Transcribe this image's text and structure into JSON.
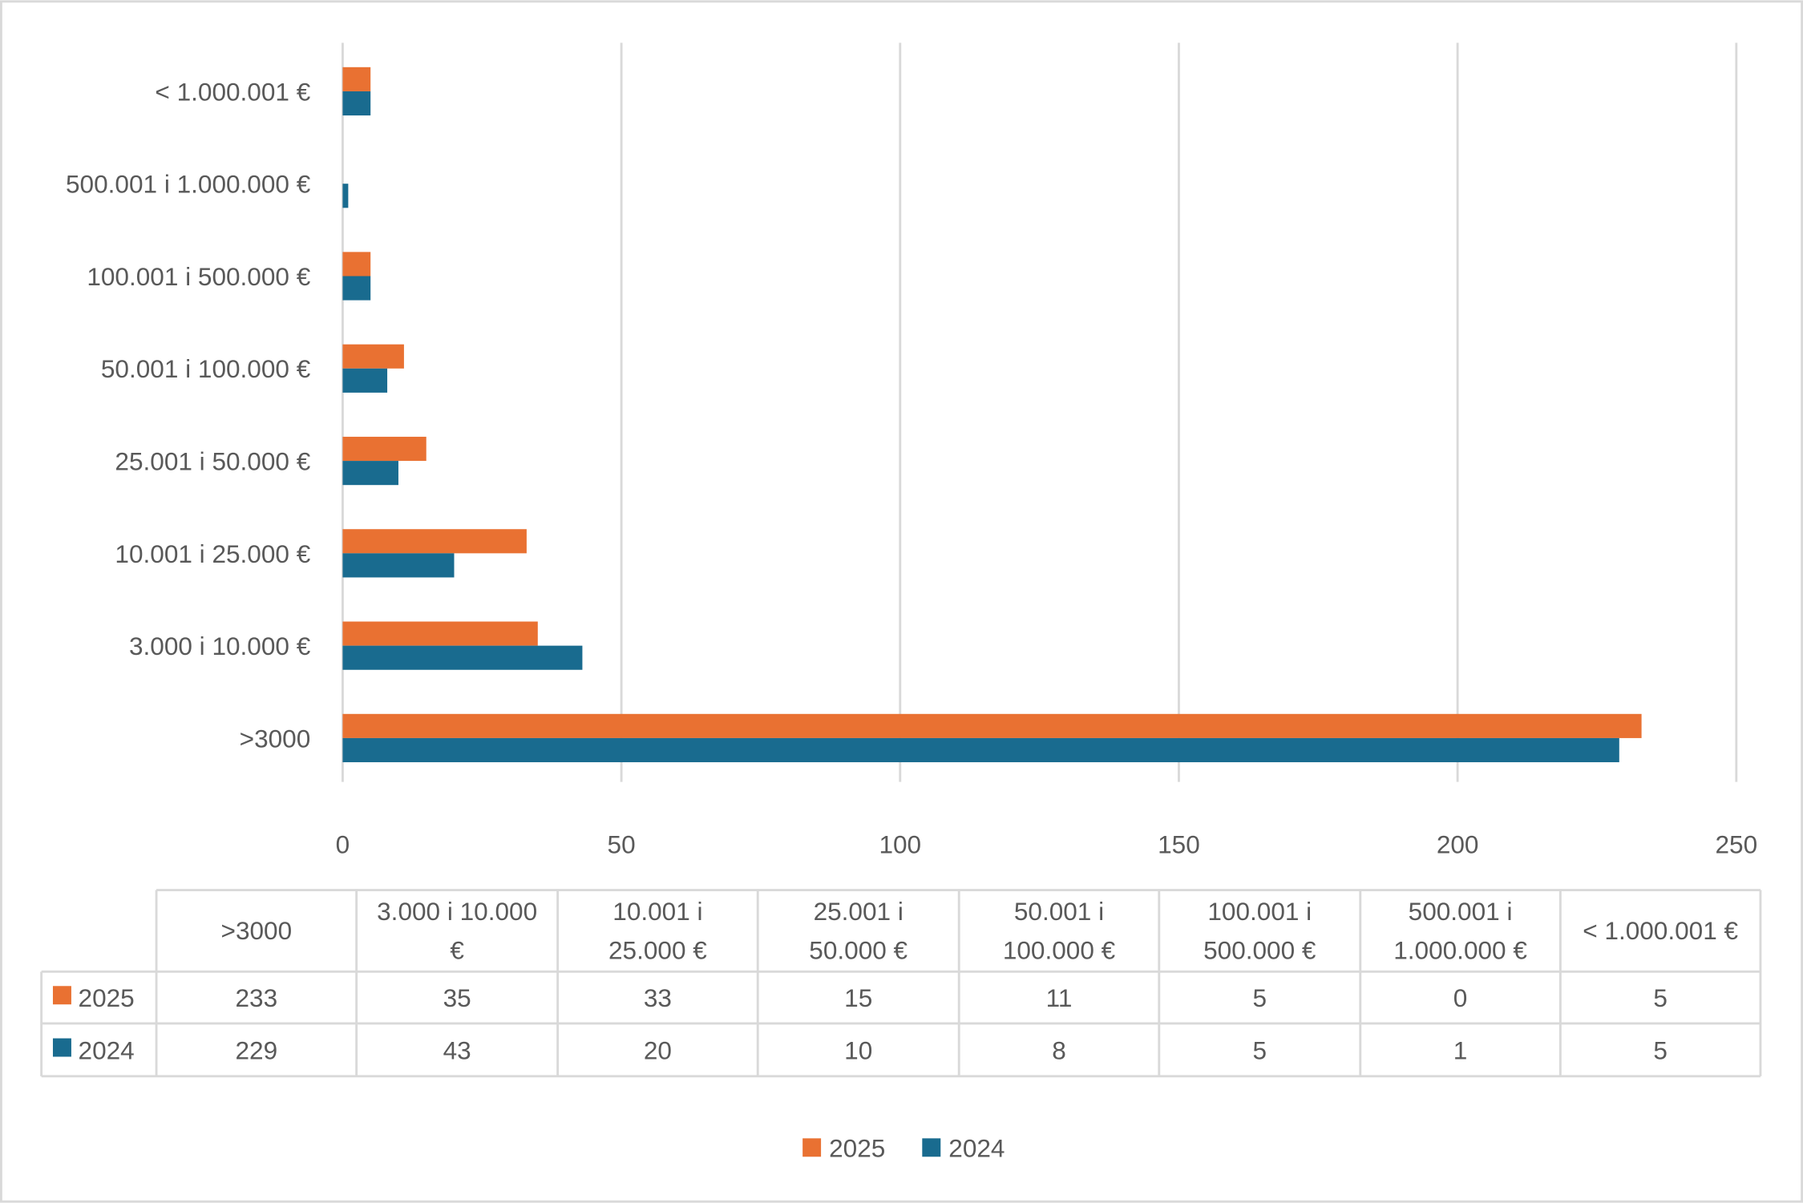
{
  "chart_data": {
    "type": "bar",
    "orientation": "horizontal",
    "categories": [
      ">3000",
      "3.000 i 10.000 €",
      "10.001 i 25.000 €",
      "25.001 i 50.000 €",
      "50.001 i 100.000 €",
      "100.001 i 500.000 €",
      "500.001 i 1.000.000 €",
      "< 1.000.001 €"
    ],
    "table_headers": [
      [
        ">3000"
      ],
      [
        "3.000 i 10.000",
        "€"
      ],
      [
        "10.001 i",
        "25.000 €"
      ],
      [
        "25.001 i",
        "50.000 €"
      ],
      [
        "50.001 i",
        "100.000 €"
      ],
      [
        "100.001 i",
        "500.000 €"
      ],
      [
        "500.001 i",
        "1.000.000 €"
      ],
      [
        "< 1.000.001 €"
      ]
    ],
    "series": [
      {
        "name": "2025",
        "color": "#E97132",
        "values": [
          233,
          35,
          33,
          15,
          11,
          5,
          0,
          5
        ]
      },
      {
        "name": "2024",
        "color": "#196B8F",
        "values": [
          229,
          43,
          20,
          10,
          8,
          5,
          1,
          5
        ]
      }
    ],
    "xlim": [
      0,
      250
    ],
    "xticks": [
      "0",
      "50",
      "100",
      "150",
      "200",
      "250"
    ],
    "grid": true,
    "legend_position": "bottom",
    "data_table": true
  }
}
